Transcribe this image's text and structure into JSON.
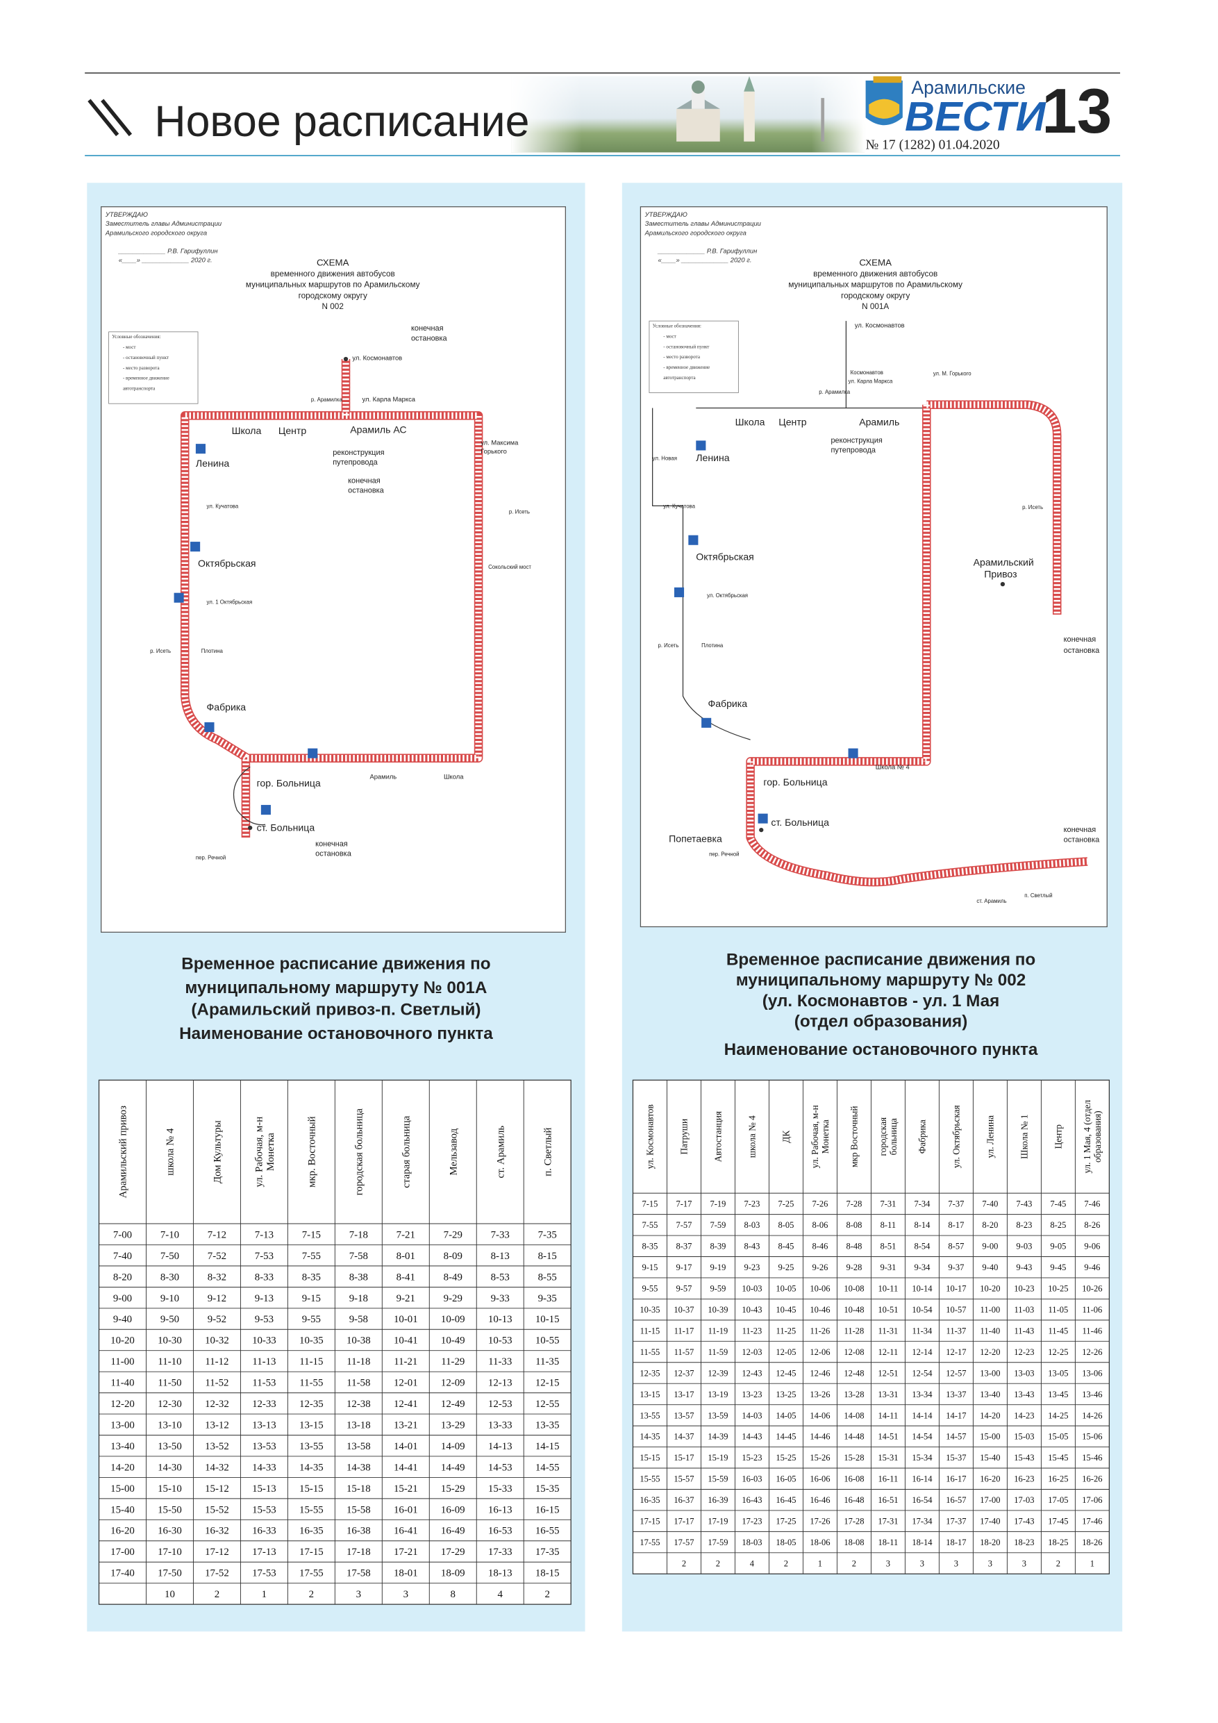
{
  "header": {
    "section": "Новое расписание",
    "paper": "Арамильские",
    "paper2": "ВЕСТИ",
    "page": 13,
    "issue": "№ 17 (1282) 01.04.2020"
  },
  "maps": [
    {
      "approval": [
        "УТВЕРЖДАЮ",
        "Заместитель главы Администрации",
        "Арамильского городского округа",
        "_____________ Р.В. Гарифуллин",
        "«____» _____________ 2020 г."
      ],
      "scheme": [
        "СХЕМА",
        "временного движения автобусов",
        "муниципальных маршрутов по Арамильскому",
        "городскому округу",
        "N 002"
      ],
      "legend": [
        "Условные обозначения:",
        "- мост",
        "- остановочный пункт",
        "- место разворота",
        "- временное движение",
        "автотранспорта"
      ],
      "labels": [
        "ул. Космонавтов",
        "конечная",
        "остановка",
        "ул. Карла Маркса",
        "р. Арамилка",
        "Школа",
        "Центр",
        "Арамиль АС",
        "реконструкция",
        "путепровода",
        "конечная",
        "остановка",
        "ул. Максима",
        "Горького",
        "Ленина",
        "ул. Кучатова",
        "р. Исеть",
        "Октябрьская",
        "Сокольский мост",
        "ул. 1 Октябрьская",
        "р. Исеть",
        "Плотина",
        "Фабрика",
        "Арамиль",
        "Школа",
        "гор. Больница",
        "ст. Больница",
        "конечная",
        "остановка",
        "пер. Речной"
      ]
    },
    {
      "approval": [
        "УТВЕРЖДАЮ",
        "Заместитель главы Администрации",
        "Арамильского городского округа",
        "_____________ Р.В. Гарифуллин",
        "«____» _____________ 2020 г."
      ],
      "scheme": [
        "СХЕМА",
        "временного движения автобусов",
        "муниципальных маршрутов по Арамильскому",
        "городскому округу",
        "N 001А"
      ],
      "legend": [
        "Условные обозначения:",
        "- мост",
        "- остановочный пункт",
        "- место разворота",
        "- временное движение",
        "автотранспорта"
      ],
      "labels": [
        "ул. Космонавтов",
        "Космонавтов",
        "р. Арамилка",
        "ул. Карла Маркса",
        "ул. М. Горького",
        "Школа",
        "Центр",
        "Арамиль",
        "реконструкция",
        "путепровода",
        "ул. Новая",
        "Ленина",
        "ул. Кучатова",
        "р. Исеть",
        "Октябрьская",
        "Арамильский",
        "Привоз",
        "ул. Октябрьская",
        "конечная",
        "остановка",
        "р. Исеть",
        "Плотина",
        "Фабрика",
        "Школа № 4",
        "гор. Больница",
        "ст. Больница",
        "Попетаевка",
        "пер. Речной",
        "конечная",
        "остановка",
        "ст. Арамиль",
        "п. Светлый"
      ]
    }
  ],
  "schedules": [
    {
      "caption": [
        "Временное расписание движения по",
        "муниципальному маршруту № 001А",
        "(Арамильский привоз-п. Светлый)",
        "Наименование остановочного пункта"
      ],
      "headers": [
        [
          "Арамильский привоз"
        ],
        [
          "школа № 4"
        ],
        [
          "Дом Культуры"
        ],
        [
          "ул. Рабочая, м-н",
          "Монетка"
        ],
        [
          "мкр. Восточный"
        ],
        [
          "городская больница"
        ],
        [
          "старая больница"
        ],
        [
          "Мельзавод"
        ],
        [
          "ст. Арамиль"
        ],
        [
          "п. Светлый"
        ]
      ],
      "rows": [
        [
          "7-00",
          "7-10",
          "7-12",
          "7-13",
          "7-15",
          "7-18",
          "7-21",
          "7-29",
          "7-33",
          "7-35"
        ],
        [
          "7-40",
          "7-50",
          "7-52",
          "7-53",
          "7-55",
          "7-58",
          "8-01",
          "8-09",
          "8-13",
          "8-15"
        ],
        [
          "8-20",
          "8-30",
          "8-32",
          "8-33",
          "8-35",
          "8-38",
          "8-41",
          "8-49",
          "8-53",
          "8-55"
        ],
        [
          "9-00",
          "9-10",
          "9-12",
          "9-13",
          "9-15",
          "9-18",
          "9-21",
          "9-29",
          "9-33",
          "9-35"
        ],
        [
          "9-40",
          "9-50",
          "9-52",
          "9-53",
          "9-55",
          "9-58",
          "10-01",
          "10-09",
          "10-13",
          "10-15"
        ],
        [
          "10-20",
          "10-30",
          "10-32",
          "10-33",
          "10-35",
          "10-38",
          "10-41",
          "10-49",
          "10-53",
          "10-55"
        ],
        [
          "11-00",
          "11-10",
          "11-12",
          "11-13",
          "11-15",
          "11-18",
          "11-21",
          "11-29",
          "11-33",
          "11-35"
        ],
        [
          "11-40",
          "11-50",
          "11-52",
          "11-53",
          "11-55",
          "11-58",
          "12-01",
          "12-09",
          "12-13",
          "12-15"
        ],
        [
          "12-20",
          "12-30",
          "12-32",
          "12-33",
          "12-35",
          "12-38",
          "12-41",
          "12-49",
          "12-53",
          "12-55"
        ],
        [
          "13-00",
          "13-10",
          "13-12",
          "13-13",
          "13-15",
          "13-18",
          "13-21",
          "13-29",
          "13-33",
          "13-35"
        ],
        [
          "13-40",
          "13-50",
          "13-52",
          "13-53",
          "13-55",
          "13-58",
          "14-01",
          "14-09",
          "14-13",
          "14-15"
        ],
        [
          "14-20",
          "14-30",
          "14-32",
          "14-33",
          "14-35",
          "14-38",
          "14-41",
          "14-49",
          "14-53",
          "14-55"
        ],
        [
          "15-00",
          "15-10",
          "15-12",
          "15-13",
          "15-15",
          "15-18",
          "15-21",
          "15-29",
          "15-33",
          "15-35"
        ],
        [
          "15-40",
          "15-50",
          "15-52",
          "15-53",
          "15-55",
          "15-58",
          "16-01",
          "16-09",
          "16-13",
          "16-15"
        ],
        [
          "16-20",
          "16-30",
          "16-32",
          "16-33",
          "16-35",
          "16-38",
          "16-41",
          "16-49",
          "16-53",
          "16-55"
        ],
        [
          "17-00",
          "17-10",
          "17-12",
          "17-13",
          "17-15",
          "17-18",
          "17-21",
          "17-29",
          "17-33",
          "17-35"
        ],
        [
          "17-40",
          "17-50",
          "17-52",
          "17-53",
          "17-55",
          "17-58",
          "18-01",
          "18-09",
          "18-13",
          "18-15"
        ]
      ],
      "footer": [
        null,
        10,
        2,
        1,
        2,
        3,
        3,
        8,
        4,
        2
      ]
    },
    {
      "caption": [
        "Временное расписание движения по",
        "муниципальному маршруту № 002",
        "(ул. Космонавтов - ул. 1 Мая",
        "(отдел образования)",
        "Наименование остановочного пункта"
      ],
      "headers": [
        [
          "ул. Космонавтов"
        ],
        [
          "Патруши"
        ],
        [
          "Автостанция"
        ],
        [
          "школа № 4"
        ],
        [
          "ДК"
        ],
        [
          "ул. Рабочая, м-н",
          "Монетка"
        ],
        [
          "мкр Восточный"
        ],
        [
          "городская",
          "больница"
        ],
        [
          "Фабрика"
        ],
        [
          "ул. Октябрьская"
        ],
        [
          "ул. Ленина"
        ],
        [
          "Школа № 1"
        ],
        [
          "Центр"
        ],
        [
          "ул. 1 Мая, 4 (отдел",
          "образования)"
        ]
      ],
      "rows": [
        [
          "7-15",
          "7-17",
          "7-19",
          "7-23",
          "7-25",
          "7-26",
          "7-28",
          "7-31",
          "7-34",
          "7-37",
          "7-40",
          "7-43",
          "7-45",
          "7-46"
        ],
        [
          "7-55",
          "7-57",
          "7-59",
          "8-03",
          "8-05",
          "8-06",
          "8-08",
          "8-11",
          "8-14",
          "8-17",
          "8-20",
          "8-23",
          "8-25",
          "8-26"
        ],
        [
          "8-35",
          "8-37",
          "8-39",
          "8-43",
          "8-45",
          "8-46",
          "8-48",
          "8-51",
          "8-54",
          "8-57",
          "9-00",
          "9-03",
          "9-05",
          "9-06"
        ],
        [
          "9-15",
          "9-17",
          "9-19",
          "9-23",
          "9-25",
          "9-26",
          "9-28",
          "9-31",
          "9-34",
          "9-37",
          "9-40",
          "9-43",
          "9-45",
          "9-46"
        ],
        [
          "9-55",
          "9-57",
          "9-59",
          "10-03",
          "10-05",
          "10-06",
          "10-08",
          "10-11",
          "10-14",
          "10-17",
          "10-20",
          "10-23",
          "10-25",
          "10-26"
        ],
        [
          "10-35",
          "10-37",
          "10-39",
          "10-43",
          "10-45",
          "10-46",
          "10-48",
          "10-51",
          "10-54",
          "10-57",
          "11-00",
          "11-03",
          "11-05",
          "11-06"
        ],
        [
          "11-15",
          "11-17",
          "11-19",
          "11-23",
          "11-25",
          "11-26",
          "11-28",
          "11-31",
          "11-34",
          "11-37",
          "11-40",
          "11-43",
          "11-45",
          "11-46"
        ],
        [
          "11-55",
          "11-57",
          "11-59",
          "12-03",
          "12-05",
          "12-06",
          "12-08",
          "12-11",
          "12-14",
          "12-17",
          "12-20",
          "12-23",
          "12-25",
          "12-26"
        ],
        [
          "12-35",
          "12-37",
          "12-39",
          "12-43",
          "12-45",
          "12-46",
          "12-48",
          "12-51",
          "12-54",
          "12-57",
          "13-00",
          "13-03",
          "13-05",
          "13-06"
        ],
        [
          "13-15",
          "13-17",
          "13-19",
          "13-23",
          "13-25",
          "13-26",
          "13-28",
          "13-31",
          "13-34",
          "13-37",
          "13-40",
          "13-43",
          "13-45",
          "13-46"
        ],
        [
          "13-55",
          "13-57",
          "13-59",
          "14-03",
          "14-05",
          "14-06",
          "14-08",
          "14-11",
          "14-14",
          "14-17",
          "14-20",
          "14-23",
          "14-25",
          "14-26"
        ],
        [
          "14-35",
          "14-37",
          "14-39",
          "14-43",
          "14-45",
          "14-46",
          "14-48",
          "14-51",
          "14-54",
          "14-57",
          "15-00",
          "15-03",
          "15-05",
          "15-06"
        ],
        [
          "15-15",
          "15-17",
          "15-19",
          "15-23",
          "15-25",
          "15-26",
          "15-28",
          "15-31",
          "15-34",
          "15-37",
          "15-40",
          "15-43",
          "15-45",
          "15-46"
        ],
        [
          "15-55",
          "15-57",
          "15-59",
          "16-03",
          "16-05",
          "16-06",
          "16-08",
          "16-11",
          "16-14",
          "16-17",
          "16-20",
          "16-23",
          "16-25",
          "16-26"
        ],
        [
          "16-35",
          "16-37",
          "16-39",
          "16-43",
          "16-45",
          "16-46",
          "16-48",
          "16-51",
          "16-54",
          "16-57",
          "17-00",
          "17-03",
          "17-05",
          "17-06"
        ],
        [
          "17-15",
          "17-17",
          "17-19",
          "17-23",
          "17-25",
          "17-26",
          "17-28",
          "17-31",
          "17-34",
          "17-37",
          "17-40",
          "17-43",
          "17-45",
          "17-46"
        ],
        [
          "17-55",
          "17-57",
          "17-59",
          "18-03",
          "18-05",
          "18-06",
          "18-08",
          "18-11",
          "18-14",
          "18-17",
          "18-20",
          "18-23",
          "18-25",
          "18-26"
        ]
      ],
      "footer": [
        null,
        2,
        2,
        4,
        2,
        1,
        2,
        3,
        3,
        3,
        3,
        3,
        2,
        1
      ]
    }
  ]
}
